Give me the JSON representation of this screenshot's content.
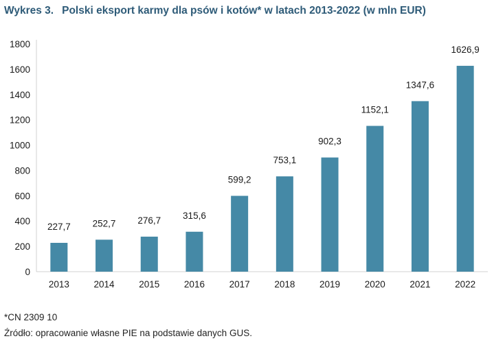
{
  "header": {
    "number": "Wykres 3.",
    "text": "Polski eksport karmy dla psów i kotów* w latach 2013-2022 (w mln EUR)"
  },
  "chart_data": {
    "type": "bar",
    "title": "Polski eksport karmy dla psów i kotów* w latach 2013-2022 (w mln EUR)",
    "categories": [
      "2013",
      "2014",
      "2015",
      "2016",
      "2017",
      "2018",
      "2019",
      "2020",
      "2021",
      "2022"
    ],
    "values": [
      227.7,
      252.7,
      276.7,
      315.6,
      599.2,
      753.1,
      902.3,
      1152.1,
      1347.6,
      1626.9
    ],
    "value_labels": [
      "227,7",
      "252,7",
      "276,7",
      "315,6",
      "599,2",
      "753,1",
      "902,3",
      "1152,1",
      "1347,6",
      "1626,9"
    ],
    "yticks": [
      "0",
      "200",
      "400",
      "600",
      "800",
      "1000",
      "1200",
      "1400",
      "1600",
      "1800"
    ],
    "ylim": [
      0,
      1800
    ],
    "xlabel": "",
    "ylabel": "",
    "grid": false,
    "bar_color": "#4589a6"
  },
  "footer": {
    "note": "*CN 2309 10",
    "source": "Źródło: opracowanie własne PIE na podstawie danych GUS."
  }
}
